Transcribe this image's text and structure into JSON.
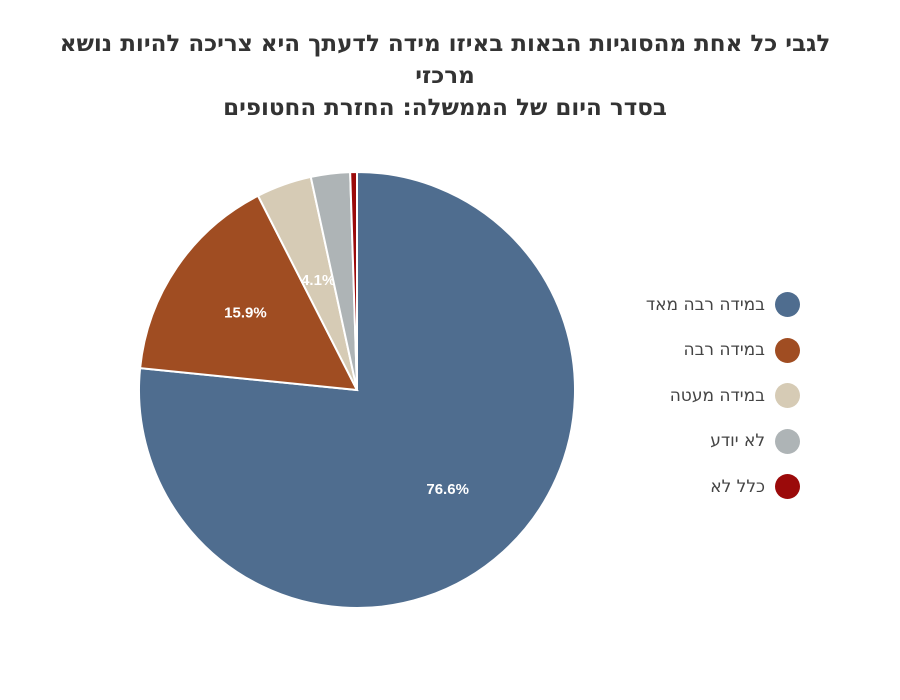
{
  "chart_data": {
    "type": "pie",
    "title_lines": [
      "לגבי כל אחת מהסוגיות הבאות באיזו מידה לדעתך היא צריכה להיות נושא מרכזי",
      "בסדר היום של הממשלה: החזרת החטופים"
    ],
    "slices": [
      {
        "label": "במידה רבה מאד",
        "value": 76.6,
        "value_label": "76.6%",
        "color": "#4f6d8f"
      },
      {
        "label": "במידה רבה",
        "value": 15.9,
        "value_label": "15.9%",
        "color": "#a04d22"
      },
      {
        "label": "במידה מעטה",
        "value": 4.1,
        "value_label": "4.1%",
        "color": "#d6cbb5"
      },
      {
        "label": "לא יודע",
        "value": 2.9,
        "value_label": "",
        "color": "#aeb4b6"
      },
      {
        "label": "כלל לא",
        "value": 0.5,
        "value_label": "",
        "color": "#9b0a0a"
      }
    ],
    "legend_position": "right"
  }
}
